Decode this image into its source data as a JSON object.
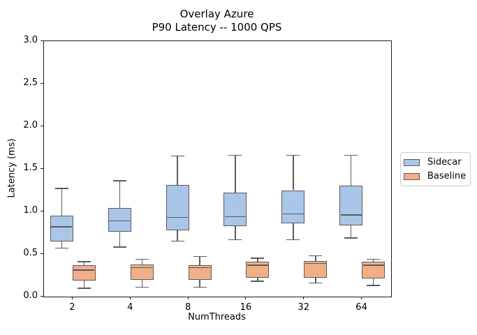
{
  "figure": {
    "title_line1": "Overlay Azure",
    "title_line2": "P90 Latency -- 1000 QPS",
    "background": "#ffffff"
  },
  "legend": {
    "items": [
      {
        "label": "Sidecar",
        "color": "#a9c6e8"
      },
      {
        "label": "Baseline",
        "color": "#f0af88"
      }
    ]
  },
  "chart_data": {
    "type": "boxplot",
    "title": "Overlay Azure\nP90 Latency -- 1000 QPS",
    "xlabel": "NumThreads",
    "ylabel": "Latency (ms)",
    "categories": [
      "2",
      "4",
      "8",
      "16",
      "32",
      "64"
    ],
    "ylim": [
      0.0,
      3.0
    ],
    "yticks": [
      "0.0",
      "0.5",
      "1.0",
      "1.5",
      "2.0",
      "2.5",
      "3.0"
    ],
    "grid": false,
    "legend_position": "center-right-outside",
    "edge_color": "#5b5b5b",
    "series": [
      {
        "name": "Sidecar",
        "fill_color": "#a9c6e8",
        "boxes": [
          {
            "whislo": 0.57,
            "q1": 0.65,
            "med": 0.82,
            "q3": 0.95,
            "whishi": 1.27
          },
          {
            "whislo": 0.58,
            "q1": 0.76,
            "med": 0.89,
            "q3": 1.04,
            "whishi": 1.36
          },
          {
            "whislo": 0.65,
            "q1": 0.78,
            "med": 0.93,
            "q3": 1.31,
            "whishi": 1.65
          },
          {
            "whislo": 0.67,
            "q1": 0.83,
            "med": 0.94,
            "q3": 1.22,
            "whishi": 1.66
          },
          {
            "whislo": 0.67,
            "q1": 0.86,
            "med": 0.97,
            "q3": 1.25,
            "whishi": 1.66
          },
          {
            "whislo": 0.69,
            "q1": 0.84,
            "med": 0.96,
            "q3": 1.3,
            "whishi": 1.66
          }
        ]
      },
      {
        "name": "Baseline",
        "fill_color": "#f0af88",
        "boxes": [
          {
            "whislo": 0.1,
            "q1": 0.19,
            "med": 0.31,
            "q3": 0.37,
            "whishi": 0.41
          },
          {
            "whislo": 0.11,
            "q1": 0.2,
            "med": 0.34,
            "q3": 0.38,
            "whishi": 0.44
          },
          {
            "whislo": 0.11,
            "q1": 0.2,
            "med": 0.34,
            "q3": 0.37,
            "whishi": 0.47
          },
          {
            "whislo": 0.18,
            "q1": 0.22,
            "med": 0.37,
            "q3": 0.41,
            "whishi": 0.45
          },
          {
            "whislo": 0.16,
            "q1": 0.22,
            "med": 0.39,
            "q3": 0.42,
            "whishi": 0.48
          },
          {
            "whislo": 0.13,
            "q1": 0.21,
            "med": 0.37,
            "q3": 0.41,
            "whishi": 0.44
          }
        ]
      }
    ]
  }
}
